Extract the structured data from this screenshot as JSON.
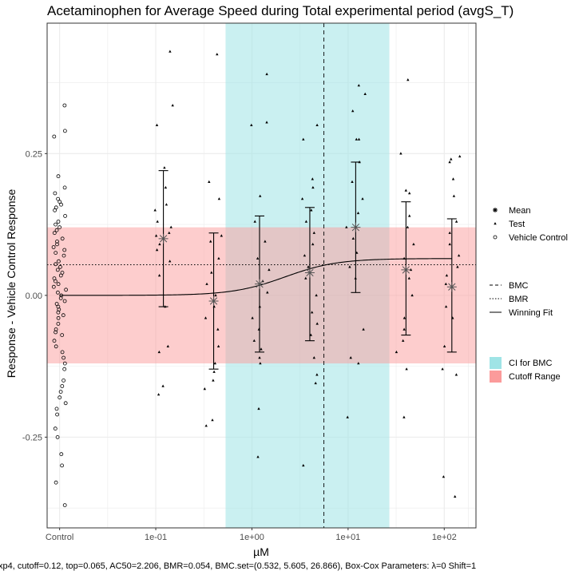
{
  "chart_data": {
    "type": "scatter",
    "title": "Acetaminophen for Average Speed during Total experimental period (avgS_T)",
    "xlabel": "µM",
    "ylabel": "Response - Vehicle Control Response",
    "caption": "xp4, cutoff=0.12, top=0.065, AC50=2.206, BMR=0.054, BMC.set=(0.532, 5.605, 26.866), Box-Cox Parameters: λ=0 Shift=1",
    "x_scale": "log10",
    "x_ticks": [
      {
        "label": "Control",
        "value": null
      },
      {
        "label": "1e-01",
        "value": 0.1
      },
      {
        "label": "1e+00",
        "value": 1
      },
      {
        "label": "1e+01",
        "value": 10
      },
      {
        "label": "1e+02",
        "value": 100
      }
    ],
    "y_ticks": [
      {
        "label": "-0.25",
        "value": -0.25
      },
      {
        "label": "0.00",
        "value": 0.0
      },
      {
        "label": "0.25",
        "value": 0.25
      }
    ],
    "ylim": [
      -0.41,
      0.48
    ],
    "xlim_log10": [
      -2.13,
      2.33
    ],
    "control_log10": -2.0,
    "grid": true,
    "cutoff": 0.12,
    "bmr": 0.054,
    "bmc": 5.605,
    "bmc_ci": [
      0.532,
      26.866
    ],
    "fit": {
      "model": "hill",
      "bottom": 0.0,
      "top": 0.065,
      "ac50": 2.206,
      "n": 1.6
    },
    "means": [
      {
        "conc": 0.12,
        "mean": 0.1,
        "lower": -0.02,
        "upper": 0.22
      },
      {
        "conc": 0.4,
        "mean": -0.01,
        "lower": -0.13,
        "upper": 0.11
      },
      {
        "conc": 1.2,
        "mean": 0.02,
        "lower": -0.1,
        "upper": 0.14
      },
      {
        "conc": 4.0,
        "mean": 0.04,
        "lower": -0.08,
        "upper": 0.155
      },
      {
        "conc": 12.0,
        "mean": 0.12,
        "lower": 0.005,
        "upper": 0.235
      },
      {
        "conc": 40.0,
        "mean": 0.045,
        "lower": -0.07,
        "upper": 0.165
      },
      {
        "conc": 120.0,
        "mean": 0.015,
        "lower": -0.1,
        "upper": 0.135
      }
    ],
    "test_points": [
      {
        "conc": 0.12,
        "values": [
          0.43,
          0.335,
          0.3,
          0.225,
          0.19,
          0.16,
          0.15,
          0.13,
          0.12,
          0.11,
          0.105,
          0.09,
          0.08,
          0.06,
          0.035,
          -0.02,
          -0.09,
          -0.1,
          -0.16,
          -0.175
        ]
      },
      {
        "conc": 0.4,
        "values": [
          0.425,
          0.2,
          0.17,
          0.105,
          0.095,
          0.065,
          0.04,
          0.02,
          0.0,
          -0.02,
          -0.04,
          -0.06,
          -0.09,
          -0.12,
          -0.135,
          -0.15,
          -0.165,
          -0.22,
          -0.23
        ]
      },
      {
        "conc": 1.2,
        "values": [
          0.39,
          0.305,
          0.3,
          0.175,
          0.13,
          0.095,
          0.065,
          0.045,
          0.025,
          0.005,
          -0.02,
          -0.04,
          -0.06,
          -0.08,
          -0.095,
          -0.11,
          -0.12,
          -0.2,
          -0.285
        ]
      },
      {
        "conc": 4.0,
        "values": [
          0.3,
          0.275,
          0.205,
          0.19,
          0.17,
          0.15,
          0.13,
          0.11,
          0.09,
          0.07,
          0.05,
          0.03,
          0.0,
          -0.03,
          -0.05,
          -0.07,
          -0.11,
          -0.14,
          -0.155,
          -0.3
        ]
      },
      {
        "conc": 12.0,
        "values": [
          0.37,
          0.355,
          0.325,
          0.275,
          0.275,
          0.235,
          0.2,
          0.17,
          0.145,
          0.12,
          0.1,
          0.075,
          0.05,
          0.03,
          -0.06,
          -0.11,
          -0.12,
          -0.215
        ]
      },
      {
        "conc": 40.0,
        "values": [
          0.38,
          0.25,
          0.185,
          0.18,
          0.14,
          0.12,
          0.09,
          0.065,
          0.045,
          0.03,
          0.0,
          -0.04,
          -0.06,
          -0.08,
          -0.1,
          -0.13,
          -0.215
        ]
      },
      {
        "conc": 120.0,
        "values": [
          0.245,
          0.24,
          0.235,
          0.205,
          0.175,
          0.13,
          0.11,
          0.09,
          0.07,
          0.05,
          0.035,
          0.02,
          -0.02,
          -0.04,
          -0.09,
          -0.13,
          -0.14,
          -0.32,
          -0.355
        ]
      }
    ],
    "vehicle_control": [
      0.335,
      0.29,
      0.28,
      0.21,
      0.19,
      0.18,
      0.17,
      0.165,
      0.16,
      0.155,
      0.15,
      0.14,
      0.13,
      0.125,
      0.12,
      0.115,
      0.11,
      0.1,
      0.095,
      0.09,
      0.085,
      0.08,
      0.075,
      0.07,
      0.06,
      0.055,
      0.05,
      0.045,
      0.04,
      0.035,
      0.03,
      0.025,
      0.02,
      0.015,
      0.01,
      0.005,
      0.0,
      -0.005,
      -0.01,
      -0.015,
      -0.02,
      -0.025,
      -0.03,
      -0.035,
      -0.04,
      -0.05,
      -0.06,
      -0.065,
      -0.07,
      -0.08,
      -0.09,
      -0.1,
      -0.11,
      -0.12,
      -0.13,
      -0.15,
      -0.16,
      -0.17,
      -0.18,
      -0.19,
      -0.2,
      -0.21,
      -0.235,
      -0.25,
      -0.28,
      -0.3,
      -0.33,
      -0.37
    ],
    "legend_groups": [
      {
        "items": [
          {
            "symbol": "mean",
            "label": "Mean"
          },
          {
            "symbol": "test",
            "label": "Test"
          },
          {
            "symbol": "vehicle",
            "label": "Vehicle Control"
          }
        ]
      },
      {
        "items": [
          {
            "symbol": "dashed",
            "label": "BMC"
          },
          {
            "symbol": "dotted",
            "label": "BMR"
          },
          {
            "symbol": "solid",
            "label": "Winning Fit"
          }
        ]
      },
      {
        "items": [
          {
            "symbol": "fill-ci",
            "label": "CI for BMC"
          },
          {
            "symbol": "fill-cutoff",
            "label": "Cutoff Range"
          }
        ]
      }
    ],
    "colors": {
      "ci_band": "#9fe4e6",
      "cutoff_band": "#fb9b9b",
      "points": "#000000",
      "grid": "#ebebeb",
      "panel_border": "#333333"
    }
  }
}
